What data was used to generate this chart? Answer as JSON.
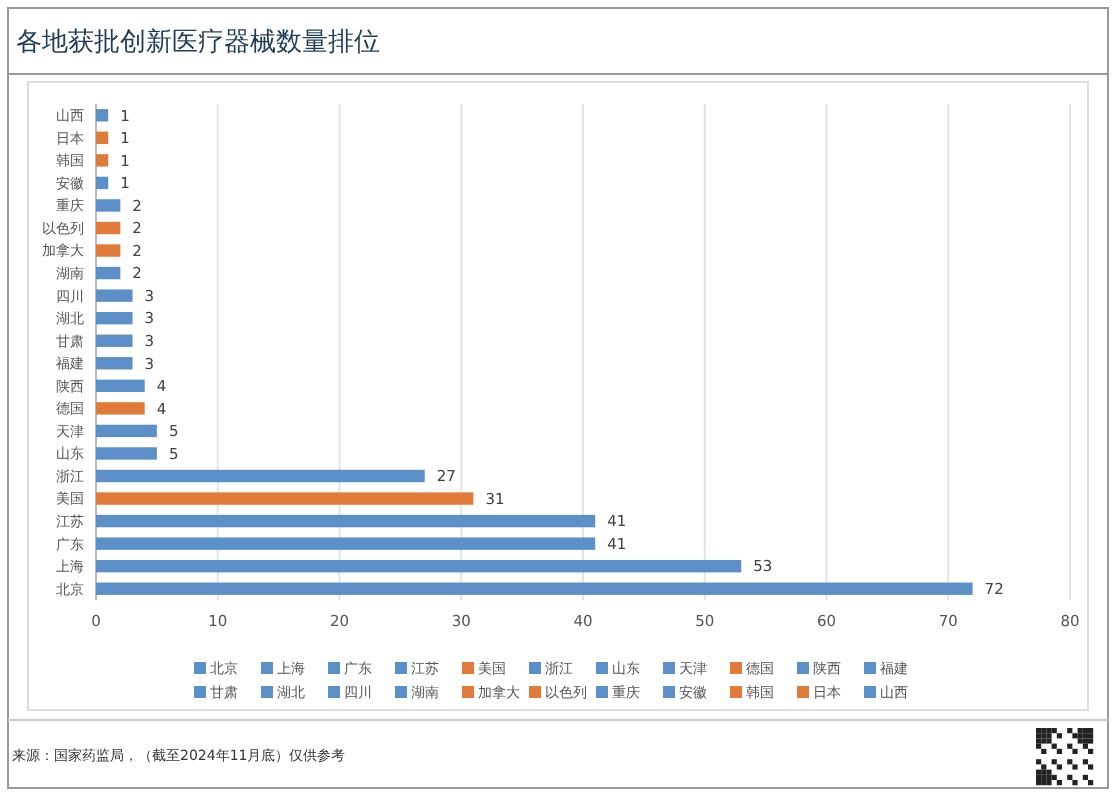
{
  "chart_data": {
    "type": "bar",
    "orientation": "horizontal",
    "title": "各地获批创新医疗器械数量排位",
    "categories": [
      "山西",
      "日本",
      "韩国",
      "安徽",
      "重庆",
      "以色列",
      "加拿大",
      "湖南",
      "四川",
      "湖北",
      "甘肃",
      "福建",
      "陕西",
      "德国",
      "天津",
      "山东",
      "浙江",
      "美国",
      "江苏",
      "广东",
      "上海",
      "北京"
    ],
    "values": [
      1,
      1,
      1,
      1,
      2,
      2,
      2,
      2,
      3,
      3,
      3,
      3,
      4,
      4,
      5,
      5,
      27,
      31,
      41,
      41,
      53,
      72
    ],
    "colors": [
      "#5b8fc7",
      "#e07b39",
      "#e07b39",
      "#5b8fc7",
      "#5b8fc7",
      "#e07b39",
      "#e07b39",
      "#5b8fc7",
      "#5b8fc7",
      "#5b8fc7",
      "#5b8fc7",
      "#5b8fc7",
      "#5b8fc7",
      "#e07b39",
      "#5b8fc7",
      "#5b8fc7",
      "#5b8fc7",
      "#e07b39",
      "#5b8fc7",
      "#5b8fc7",
      "#5b8fc7",
      "#5b8fc7"
    ],
    "xlim": [
      0,
      80
    ],
    "xticks": [
      0,
      10,
      20,
      30,
      40,
      50,
      60,
      70,
      80
    ],
    "grid": "x",
    "data_labels": true,
    "annotations": [
      "来源：国家药监局，（截至2024年11月底）仅供参考"
    ]
  }
}
